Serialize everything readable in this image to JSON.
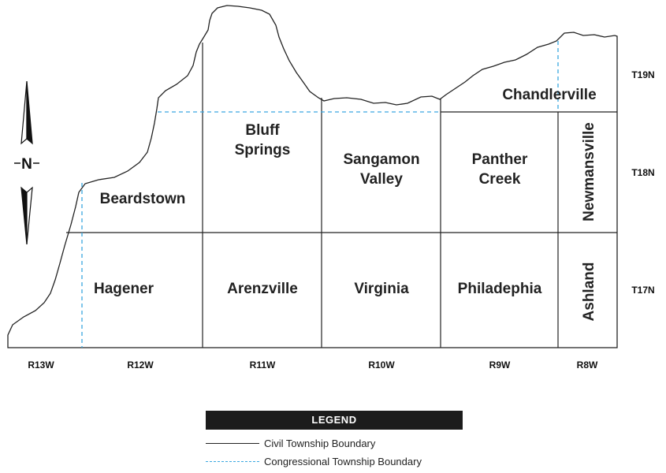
{
  "townships": {
    "chandlerville": "Chandlerville",
    "bluff_springs_1": "Bluff",
    "bluff_springs_2": "Springs",
    "sangamon_valley_1": "Sangamon",
    "sangamon_valley_2": "Valley",
    "panther_creek_1": "Panther",
    "panther_creek_2": "Creek",
    "newmansville": "Newmansville",
    "beardstown": "Beardstown",
    "hagener": "Hagener",
    "arenzville": "Arenzville",
    "virginia": "Virginia",
    "philadephia": "Philadephia",
    "ashland": "Ashland"
  },
  "township_rows": {
    "t19n": "T19N",
    "t18n": "T18N",
    "t17n": "T17N"
  },
  "ranges": {
    "r13w": "R13W",
    "r12w": "R12W",
    "r11w": "R11W",
    "r10w": "R10W",
    "r9w": "R9W",
    "r8w": "R8W"
  },
  "north_arrow": {
    "label": "N"
  },
  "legend": {
    "title": "LEGEND",
    "civil_label": "Civil Township Boundary",
    "congressional_label": "Congressional Township Boundary"
  },
  "colors": {
    "civil_line": "#222222",
    "congressional_line": "#3aa7e0",
    "legend_bar": "#1c1c1c"
  }
}
